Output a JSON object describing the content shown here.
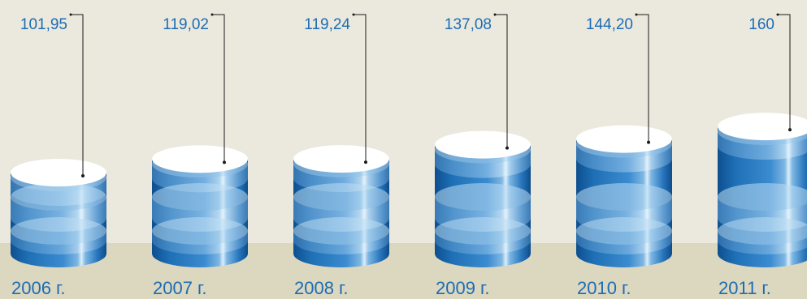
{
  "colors": {
    "background_top": "#ebe9dd",
    "background_bottom": "#dcd7bf",
    "cylinder_dark": "#0e5394",
    "cylinder_mid": "#2f7fc4",
    "cylinder_light": "#7fb6e2",
    "cylinder_top": "#ffffff",
    "label_text": "#1c6cb4",
    "leader_line": "#1a1a1a"
  },
  "chart_data": {
    "type": "bar",
    "style": "3d-cylinder",
    "title": "",
    "xlabel": "",
    "ylabel": "",
    "grid": false,
    "legend": "none",
    "categories": [
      "2006 г.",
      "2007 г.",
      "2008 г.",
      "2009 г.",
      "2010 г.",
      "2011 г."
    ],
    "values": [
      101.95,
      119.02,
      119.24,
      137.08,
      144.2,
      160
    ],
    "value_labels": [
      "101,95",
      "119,02",
      "119,24",
      "137,08",
      "144,20",
      "160"
    ],
    "ylim": [
      0,
      170
    ]
  }
}
